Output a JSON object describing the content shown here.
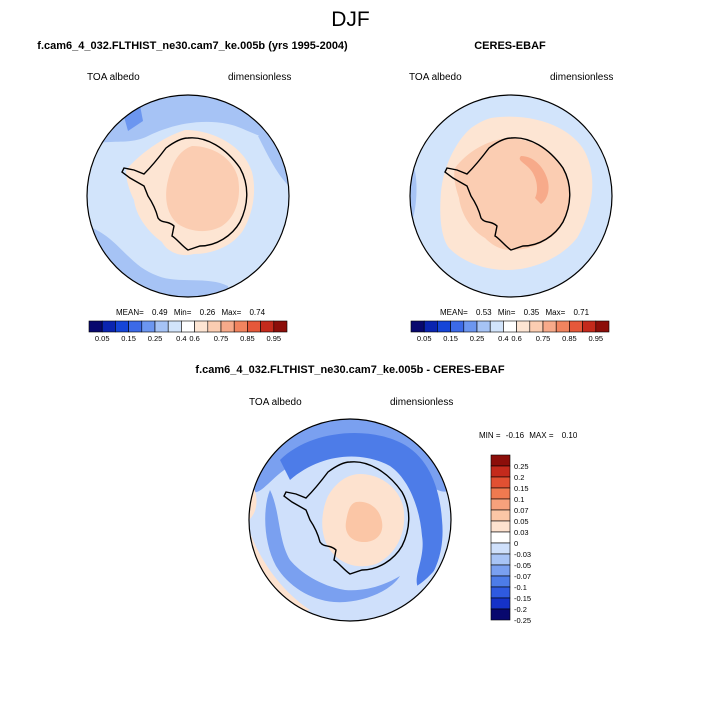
{
  "figure": {
    "title": "DJF"
  },
  "palette": {
    "abs": [
      "#08086e",
      "#0a24b0",
      "#1545d8",
      "#3c6ae8",
      "#6c96f0",
      "#a6c3f5",
      "#d2e4fb",
      "#ffffff",
      "#fde5d3",
      "#fbcdb2",
      "#f7aa8a",
      "#f1845f",
      "#e5583a",
      "#c42a1c",
      "#8c0e0a"
    ],
    "diff": [
      "#08086e",
      "#1532c8",
      "#2f5ae0",
      "#4d7ce8",
      "#7aa0f0",
      "#a8c4f6",
      "#cfe0fb",
      "#ffffff",
      "#fde2cf",
      "#fbc6a6",
      "#f7a17c",
      "#f07a50",
      "#e25032",
      "#c42a1c",
      "#8c0e0a"
    ]
  },
  "panels": [
    {
      "title": "f.cam6_4_032.FLTHIST_ne30.cam7_ke.005b (yrs 1995-2004)",
      "variable": "TOA albedo",
      "units": "dimensionless",
      "stats": {
        "mean_label": "MEAN=",
        "mean": "0.49",
        "min_label": "Min=",
        "min": "0.26",
        "max_label": "Max=",
        "max": "0.74"
      },
      "colorbar_labels": [
        "0.05",
        "0.15",
        "0.25",
        "0.4",
        "0.6",
        "0.75",
        "0.85",
        "0.95"
      ]
    },
    {
      "title": "CERES-EBAF",
      "variable": "TOA albedo",
      "units": "dimensionless",
      "stats": {
        "mean_label": "MEAN=",
        "mean": "0.53",
        "min_label": "Min=",
        "min": "0.35",
        "max_label": "Max=",
        "max": "0.71"
      },
      "colorbar_labels": [
        "0.05",
        "0.15",
        "0.25",
        "0.4",
        "0.6",
        "0.75",
        "0.85",
        "0.95"
      ]
    },
    {
      "title": "f.cam6_4_032.FLTHIST_ne30.cam7_ke.005b - CERES-EBAF",
      "variable": "TOA albedo",
      "units": "dimensionless",
      "stats": {
        "min_label": "MIN =",
        "min": "-0.16",
        "max_label": "MAX =",
        "max": "0.10"
      },
      "colorbar_labels": [
        "0.25",
        "0.2",
        "0.15",
        "0.1",
        "0.07",
        "0.05",
        "0.03",
        "0",
        "-0.03",
        "-0.05",
        "-0.07",
        "-0.1",
        "-0.15",
        "-0.2",
        "-0.25"
      ]
    }
  ]
}
